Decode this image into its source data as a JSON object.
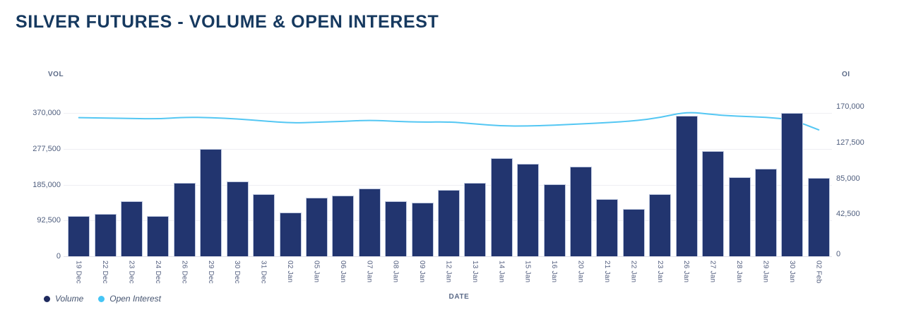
{
  "title": "SILVER FUTURES - VOLUME & OPEN INTEREST",
  "chart_data": {
    "type": "bar",
    "subtype": "dual-axis bar + line",
    "categories": [
      "19 Dec",
      "22 Dec",
      "23 Dec",
      "24 Dec",
      "26 Dec",
      "29 Dec",
      "30 Dec",
      "31 Dec",
      "02 Jan",
      "05 Jan",
      "06 Jan",
      "07 Jan",
      "08 Jan",
      "09 Jan",
      "12 Jan",
      "13 Jan",
      "14 Jan",
      "15 Jan",
      "16 Jan",
      "20 Jan",
      "21 Jan",
      "22 Jan",
      "23 Jan",
      "26 Jan",
      "27 Jan",
      "28 Jan",
      "29 Jan",
      "30 Jan",
      "02 Feb"
    ],
    "series": [
      {
        "name": "Volume",
        "type": "bar",
        "axis": "left",
        "color": "#22356f",
        "values": [
          104000,
          109500,
          142000,
          104500,
          190000,
          277500,
          192500,
          161000,
          113000,
          151000,
          157500,
          175000,
          143000,
          139000,
          172000,
          190000,
          253000,
          238000,
          185000,
          231000,
          148000,
          123000,
          161000,
          362000,
          272000,
          205000,
          226000,
          370000,
          202000
        ]
      },
      {
        "name": "Open Interest",
        "type": "line",
        "axis": "right",
        "color": "#54c7f3",
        "values": [
          164500,
          164000,
          163500,
          163000,
          165000,
          164500,
          163000,
          160500,
          158000,
          159000,
          160000,
          161500,
          160000,
          159000,
          159500,
          157000,
          154500,
          154500,
          155500,
          157000,
          158500,
          160500,
          164500,
          171500,
          168000,
          166000,
          165000,
          162000,
          150000
        ]
      }
    ],
    "left_axis": {
      "label": "VOL",
      "max": 370000,
      "min": 0,
      "tick_labels": [
        "370,000",
        "277,500",
        "185,000",
        "92,500",
        "0"
      ]
    },
    "right_axis": {
      "label": "OI",
      "max": 170000,
      "min": 0,
      "tick_labels": [
        "170,000",
        "127,500",
        "85,000",
        "42,500",
        "0"
      ]
    },
    "xlabel": "DATE",
    "grid": "horizontal",
    "legend_position": "bottom-left",
    "legend": [
      {
        "label": "Volume",
        "color": "#1e2a5e"
      },
      {
        "label": "Open Interest",
        "color": "#45c5f5"
      }
    ]
  },
  "colors": {
    "title": "#16395f",
    "bar_fill": "#22356f",
    "bar_border": "#bfc9e0",
    "line": "#54c7f3",
    "gridline": "#efeff3",
    "tick_text": "#4f5e7e",
    "axis_title_text": "#5b6a87",
    "background": "#ffffff"
  }
}
